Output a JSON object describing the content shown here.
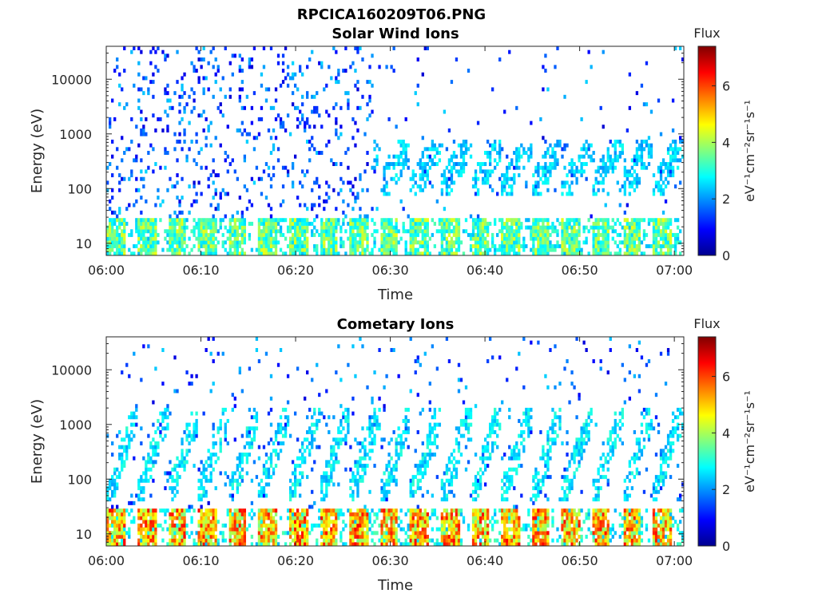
{
  "figure": {
    "title": "RPCICA160209T06.PNG"
  },
  "chart_data": [
    {
      "type": "heatmap",
      "title": "Solar Wind Ions",
      "xlabel": "Time",
      "ylabel": "Energy (eV)",
      "x_ticks": [
        "06:00",
        "06:10",
        "06:20",
        "06:30",
        "06:40",
        "06:50",
        "07:00"
      ],
      "x_range": [
        "06:00",
        "07:01"
      ],
      "y_scale": "log",
      "y_ticks": [
        "10",
        "100",
        "1000",
        "10000"
      ],
      "y_range": [
        6,
        40000
      ],
      "colorbar": {
        "title": "Flux",
        "label": "eV⁻¹cm⁻²sr⁻¹s⁻¹",
        "ticks": [
          "0",
          "2",
          "4",
          "6"
        ],
        "range": [
          0,
          7.4
        ],
        "colormap": "jet"
      },
      "pattern": {
        "sweep_period_min": 3.2,
        "low_energy_band_eV": [
          6,
          30
        ],
        "low_band_peak_flux": 4.5,
        "scatter_max_flux": 2.5,
        "sweep_band_eV": [
          80,
          800
        ],
        "sweep_band_flux": 2.8,
        "sweep_band_start_min": 28
      }
    },
    {
      "type": "heatmap",
      "title": "Cometary Ions",
      "xlabel": "Time",
      "ylabel": "Energy (eV)",
      "x_ticks": [
        "06:00",
        "06:10",
        "06:20",
        "06:30",
        "06:40",
        "06:50",
        "07:00"
      ],
      "x_range": [
        "06:00",
        "07:01"
      ],
      "y_scale": "log",
      "y_ticks": [
        "10",
        "100",
        "1000",
        "10000"
      ],
      "y_range": [
        6,
        40000
      ],
      "colorbar": {
        "title": "Flux",
        "label": "eV⁻¹cm⁻²sr⁻¹s⁻¹",
        "ticks": [
          "0",
          "2",
          "4",
          "6"
        ],
        "range": [
          0,
          7.4
        ],
        "colormap": "jet"
      },
      "pattern": {
        "sweep_period_min": 3.2,
        "low_energy_band_eV": [
          6,
          30
        ],
        "low_band_peak_flux": 6.5,
        "scatter_max_flux": 2.5,
        "sweep_band_eV": [
          40,
          2000
        ],
        "sweep_band_flux": 3.0,
        "sweep_band_start_min": 0
      }
    }
  ]
}
